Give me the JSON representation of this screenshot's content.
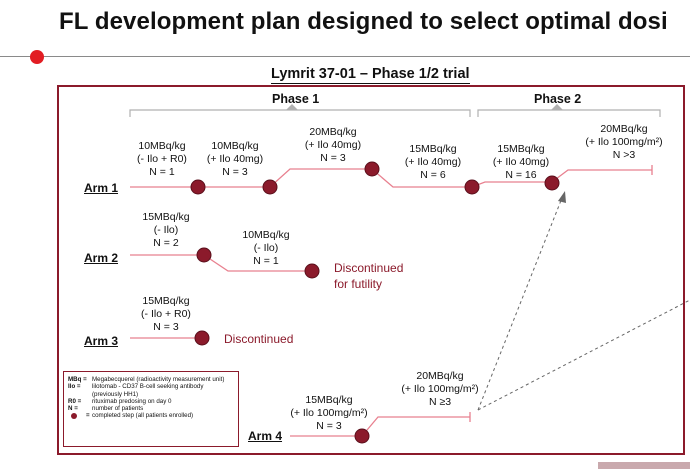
{
  "title": "FL development plan designed to select optimal dosi",
  "subtitle": "Lymrit 37-01 – Phase 1/2 trial",
  "phases": {
    "phase1": "Phase 1",
    "phase2": "Phase 2"
  },
  "arms": {
    "arm1": {
      "label": "Arm 1",
      "steps": [
        "10MBq/kg\n(- Ilo + R0)\nN = 1",
        "10MBq/kg\n(+ Ilo 40mg)\nN = 3",
        "20MBq/kg\n(+ Ilo 40mg)\nN = 3",
        "15MBq/kg\n(+ Ilo 40mg)\nN = 6",
        "15MBq/kg\n(+ Ilo 40mg)\nN = 16",
        "20MBq/kg\n(+ Ilo 100mg/m²)\nN >3"
      ]
    },
    "arm2": {
      "label": "Arm 2",
      "steps": [
        "15MBq/kg\n(- Ilo)\nN = 2",
        "10MBq/kg\n(- Ilo)\nN = 1"
      ],
      "note": "Discontinued\nfor futility"
    },
    "arm3": {
      "label": "Arm 3",
      "steps": [
        "15MBq/kg\n(- Ilo + R0)\nN = 3"
      ],
      "note": "Discontinued"
    },
    "arm4": {
      "label": "Arm 4",
      "steps": [
        "15MBq/kg\n(+ Ilo 100mg/m²)\nN = 3",
        "20MBq/kg\n(+ Ilo 100mg/m²)\nN ≥3"
      ]
    }
  },
  "legend": [
    {
      "key": "MBq =",
      "value": "Megabecquerel (radioactivity measurement unit)"
    },
    {
      "key": "Ilo =",
      "value": "lilotomab - CD37 B-cell seeking antibody (previously HH1)"
    },
    {
      "key": "R0 =",
      "value": "rituximab predosing on day 0"
    },
    {
      "key": "N =",
      "value": "number of patients"
    },
    {
      "key": "=",
      "value": "completed step (all patients enrolled)",
      "dot": true
    }
  ],
  "colors": {
    "accent": "#8b1a2b",
    "segment": "#e8808f",
    "title_dot": "#e21d23"
  }
}
